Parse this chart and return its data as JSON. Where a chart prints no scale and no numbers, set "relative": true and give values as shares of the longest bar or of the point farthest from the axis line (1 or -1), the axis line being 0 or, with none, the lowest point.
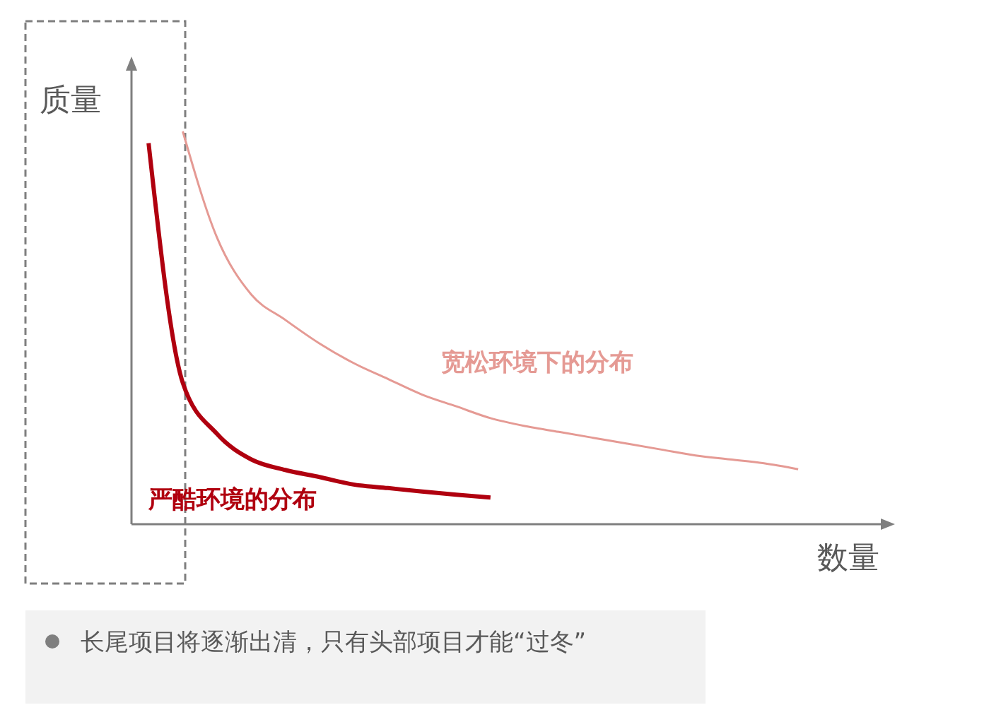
{
  "chart_data": {
    "type": "line",
    "relative": true,
    "xlabel": "数量",
    "ylabel": "质量",
    "marker": "none",
    "line_style": "solid",
    "categories": [
      null,
      null,
      null,
      null,
      null,
      null,
      null,
      null,
      null,
      null,
      null,
      null,
      null,
      null,
      null,
      null,
      null,
      null,
      null,
      null,
      null,
      null
    ],
    "series": [
      {
        "name": "宽松环境下的分布",
        "color": "#e59a94",
        "values": [
          null,
          1.0,
          0.73,
          0.585,
          0.52,
          0.46,
          0.41,
          0.37,
          0.33,
          0.3,
          0.27,
          0.25,
          0.235,
          0.22,
          0.205,
          0.19,
          0.175,
          0.165,
          0.155,
          0.14,
          null,
          null
        ]
      },
      {
        "name": "严酷环境的分布",
        "color": "#b0000f",
        "values": [
          0.97,
          0.36,
          0.23,
          0.165,
          0.138,
          0.12,
          0.101,
          0.092,
          0.083,
          0.075,
          0.068,
          null,
          null,
          null,
          null,
          null,
          null,
          null,
          null,
          null,
          null,
          null
        ]
      }
    ],
    "annotations": [
      "长尾项目将逐渐出清，只有头部项目才能“过冬”"
    ]
  }
}
